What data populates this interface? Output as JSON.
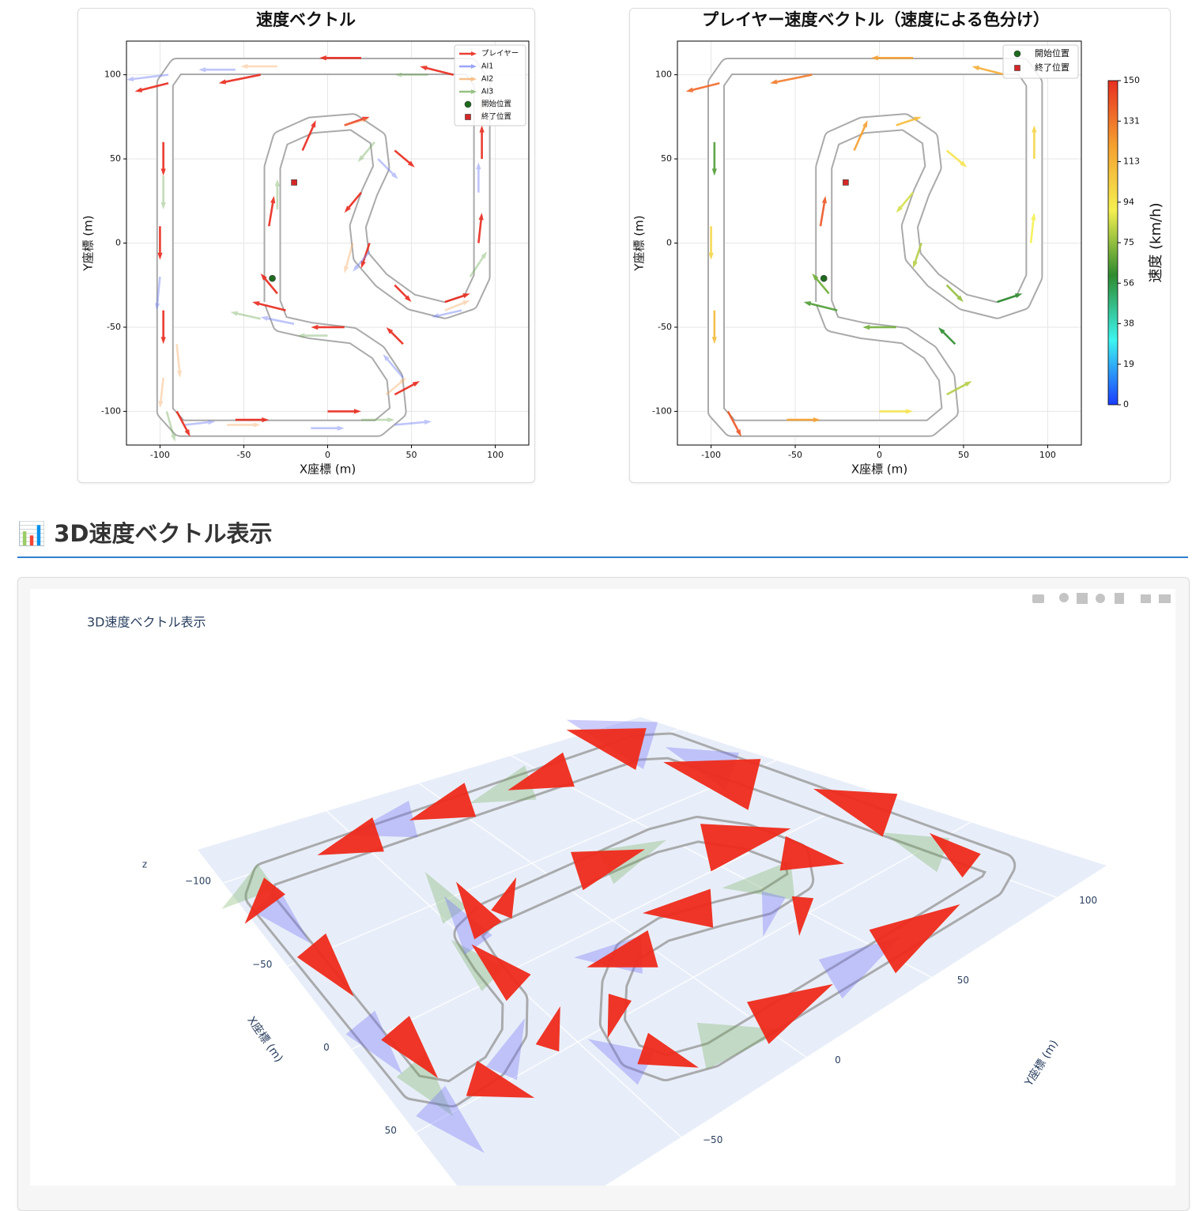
{
  "section_title": "📊 3D速度ベクトル表示",
  "chart_data": [
    {
      "type": "quiver",
      "title": "速度ベクトル",
      "xlabel": "X座標 (m)",
      "ylabel": "Y座標 (m)",
      "xlim": [
        -120,
        120
      ],
      "ylim": [
        -120,
        120
      ],
      "xticks": [
        -100,
        -50,
        0,
        50,
        100
      ],
      "yticks": [
        -100,
        -50,
        0,
        50,
        100
      ],
      "grid": true,
      "legend": "upper right",
      "series": [
        {
          "name": "プレイヤー",
          "color": "#e8291c",
          "opacity": 0.9,
          "x": [
            -30,
            -35,
            -15,
            10,
            40,
            20,
            25,
            40,
            70,
            90,
            92,
            75,
            20,
            -40,
            -95,
            -98,
            -100,
            -98,
            -90,
            -55,
            0,
            40,
            45,
            10,
            -25
          ],
          "y": [
            -30,
            10,
            55,
            70,
            55,
            30,
            0,
            -25,
            -35,
            0,
            50,
            100,
            110,
            100,
            95,
            60,
            10,
            -40,
            -100,
            -105,
            -100,
            -90,
            -60,
            -50,
            -40
          ],
          "u": [
            -10,
            3,
            8,
            15,
            12,
            -10,
            -5,
            10,
            15,
            2,
            0,
            -20,
            -25,
            -25,
            -20,
            0,
            0,
            0,
            8,
            20,
            20,
            15,
            -10,
            -20,
            -20
          ],
          "v": [
            12,
            18,
            18,
            5,
            -10,
            -12,
            -15,
            -10,
            5,
            18,
            20,
            5,
            0,
            -5,
            -5,
            -20,
            -20,
            -20,
            -15,
            0,
            0,
            8,
            10,
            0,
            5
          ]
        },
        {
          "name": "AI1",
          "color": "#6f7ff5",
          "opacity": 0.45,
          "x": [
            -95,
            -55,
            -10,
            40,
            90,
            80,
            25,
            30,
            -20,
            -100,
            -85,
            45
          ],
          "y": [
            100,
            103,
            -110,
            -108,
            30,
            -40,
            -5,
            50,
            -48,
            -20,
            -108,
            -80
          ],
          "u": [
            -25,
            -22,
            20,
            22,
            0,
            -18,
            -10,
            12,
            -20,
            -2,
            18,
            -12
          ],
          "v": [
            -3,
            0,
            0,
            2,
            18,
            -4,
            -12,
            -12,
            4,
            -20,
            2,
            14
          ]
        },
        {
          "name": "AI2",
          "color": "#f4a65a",
          "opacity": 0.4,
          "x": [
            -90,
            -30,
            10,
            70,
            92,
            -98,
            -60,
            35,
            15
          ],
          "y": [
            -60,
            105,
            70,
            -40,
            70,
            -80,
            -108,
            -90,
            0
          ],
          "u": [
            2,
            -22,
            15,
            15,
            0,
            -2,
            20,
            12,
            -5
          ],
          "v": [
            -20,
            0,
            4,
            6,
            20,
            -18,
            0,
            10,
            -18
          ]
        },
        {
          "name": "AI3",
          "color": "#6aa84f",
          "opacity": 0.4,
          "x": [
            -96,
            -40,
            20,
            60,
            85,
            -98,
            0,
            28,
            -30
          ],
          "y": [
            -100,
            -45,
            -105,
            100,
            -20,
            40,
            -55,
            60,
            20
          ],
          "u": [
            5,
            -18,
            20,
            -20,
            10,
            0,
            -18,
            -10,
            0
          ],
          "v": [
            -18,
            4,
            0,
            0,
            15,
            -20,
            0,
            -12,
            18
          ]
        }
      ],
      "markers": [
        {
          "name": "開始位置",
          "color": "#1e6b1e",
          "shape": "circle",
          "x": [
            -33
          ],
          "y": [
            -21
          ]
        },
        {
          "name": "終了位置",
          "color": "#d62728",
          "shape": "square",
          "x": [
            -20
          ],
          "y": [
            36
          ]
        }
      ]
    },
    {
      "type": "quiver_colored",
      "title": "プレイヤー速度ベクトル（速度による色分け）",
      "xlabel": "X座標 (m)",
      "ylabel": "Y座標 (m)",
      "xlim": [
        -120,
        120
      ],
      "ylim": [
        -120,
        120
      ],
      "xticks": [
        -100,
        -50,
        0,
        50,
        100
      ],
      "yticks": [
        -100,
        -50,
        0,
        50,
        100
      ],
      "grid": true,
      "legend": "upper right",
      "series": [
        {
          "x": [
            -30,
            -35,
            -15,
            10,
            40,
            20,
            25,
            40,
            70,
            90,
            92,
            75,
            20,
            -40,
            -95,
            -98,
            -100,
            -98,
            -90,
            -55,
            0,
            40,
            45,
            10,
            -25
          ],
          "y": [
            -30,
            10,
            55,
            70,
            55,
            30,
            0,
            -25,
            -35,
            0,
            50,
            100,
            110,
            100,
            95,
            60,
            10,
            -40,
            -100,
            -105,
            -100,
            -90,
            -60,
            -50,
            -40
          ],
          "u": [
            -10,
            3,
            8,
            15,
            12,
            -10,
            -5,
            10,
            15,
            2,
            0,
            -20,
            -25,
            -25,
            -20,
            0,
            0,
            0,
            8,
            20,
            20,
            15,
            -10,
            -20,
            -20
          ],
          "v": [
            12,
            18,
            18,
            5,
            -10,
            -12,
            -15,
            -10,
            5,
            18,
            20,
            5,
            0,
            -5,
            -5,
            -20,
            -20,
            -20,
            -15,
            0,
            0,
            8,
            10,
            0,
            5
          ],
          "speed": [
            70,
            140,
            120,
            110,
            95,
            85,
            80,
            75,
            60,
            90,
            100,
            115,
            120,
            130,
            135,
            65,
            100,
            110,
            140,
            120,
            95,
            80,
            60,
            70,
            65
          ]
        }
      ],
      "colorbar": {
        "label": "速度 (km/h)",
        "lim": [
          0,
          150
        ],
        "ticks": [
          0,
          {
            "value": 18.75,
            "label": "19"
          },
          {
            "value": 37.5,
            "label": "38"
          },
          {
            "value": 56.25,
            "label": "56"
          },
          75,
          {
            "value": 93.75,
            "label": "94"
          },
          {
            "value": 112.5,
            "label": "113"
          },
          {
            "value": 131.25,
            "label": "131"
          },
          150
        ],
        "colors": [
          "#1a3cff",
          "#3cf5f0",
          "#2e8b2e",
          "#f5f050",
          "#f5a030",
          "#e83020"
        ]
      },
      "markers": [
        {
          "name": "開始位置",
          "color": "#1e6b1e",
          "shape": "circle",
          "x": [
            -33
          ],
          "y": [
            -21
          ]
        },
        {
          "name": "終了位置",
          "color": "#d62728",
          "shape": "square",
          "x": [
            -20
          ],
          "y": [
            36
          ]
        }
      ]
    },
    {
      "type": "cone3d",
      "title": "3D速度ベクトル表示",
      "xlabel": "X座標 (m)",
      "ylabel": "Y座標 (m)",
      "zlabel": "z",
      "xlim": [
        -120,
        120
      ],
      "ylim": [
        -120,
        120
      ],
      "xticks": [
        {
          "value": -100,
          "label": "−100"
        },
        {
          "value": -50,
          "label": "−50"
        },
        0,
        50
      ],
      "yticks": [
        100,
        50,
        0,
        {
          "value": -50,
          "label": "−50"
        }
      ],
      "series": [
        {
          "name": "プレイヤー",
          "color": "#ee2a1b",
          "opacity": 0.95,
          "x": [
            -30,
            -35,
            -15,
            10,
            40,
            20,
            25,
            40,
            70,
            90,
            92,
            75,
            20,
            -40,
            -95,
            -98,
            -100,
            -98,
            -90,
            -55,
            0,
            40,
            45,
            10,
            -25
          ],
          "y": [
            -30,
            10,
            55,
            70,
            55,
            30,
            0,
            -25,
            -35,
            0,
            50,
            100,
            110,
            100,
            95,
            60,
            10,
            -40,
            -100,
            -105,
            -100,
            -90,
            -60,
            -50,
            -40
          ],
          "u": [
            -10,
            3,
            8,
            15,
            12,
            -10,
            -5,
            10,
            15,
            2,
            0,
            -20,
            -25,
            -25,
            -20,
            0,
            0,
            0,
            8,
            20,
            20,
            15,
            -10,
            -20,
            -20
          ],
          "v": [
            12,
            18,
            18,
            5,
            -10,
            -12,
            -15,
            -10,
            5,
            18,
            20,
            5,
            0,
            -5,
            -5,
            -20,
            -20,
            -20,
            -15,
            0,
            0,
            8,
            10,
            0,
            5
          ]
        },
        {
          "name": "AI1",
          "color": "#6f6ff5",
          "opacity": 0.35,
          "x": [
            -95,
            -55,
            -10,
            40,
            90,
            80,
            25,
            30,
            -20,
            -100,
            -85,
            45
          ],
          "y": [
            100,
            103,
            -110,
            -108,
            30,
            -40,
            -5,
            50,
            -48,
            -20,
            -108,
            -80
          ],
          "u": [
            -25,
            -22,
            20,
            22,
            0,
            -18,
            -10,
            12,
            -20,
            -2,
            18,
            -12
          ],
          "v": [
            -3,
            0,
            0,
            2,
            18,
            -4,
            -12,
            -12,
            4,
            -20,
            2,
            14
          ]
        },
        {
          "name": "AI3",
          "color": "#6aa84f",
          "opacity": 0.3,
          "x": [
            -96,
            -40,
            20,
            60,
            85,
            -98,
            0,
            28,
            -30
          ],
          "y": [
            -100,
            -45,
            -105,
            100,
            -20,
            40,
            -55,
            60,
            20
          ],
          "u": [
            5,
            -18,
            20,
            -20,
            10,
            0,
            -18,
            -10,
            0
          ],
          "v": [
            -18,
            4,
            0,
            0,
            15,
            -20,
            0,
            -12,
            18
          ]
        }
      ]
    }
  ]
}
